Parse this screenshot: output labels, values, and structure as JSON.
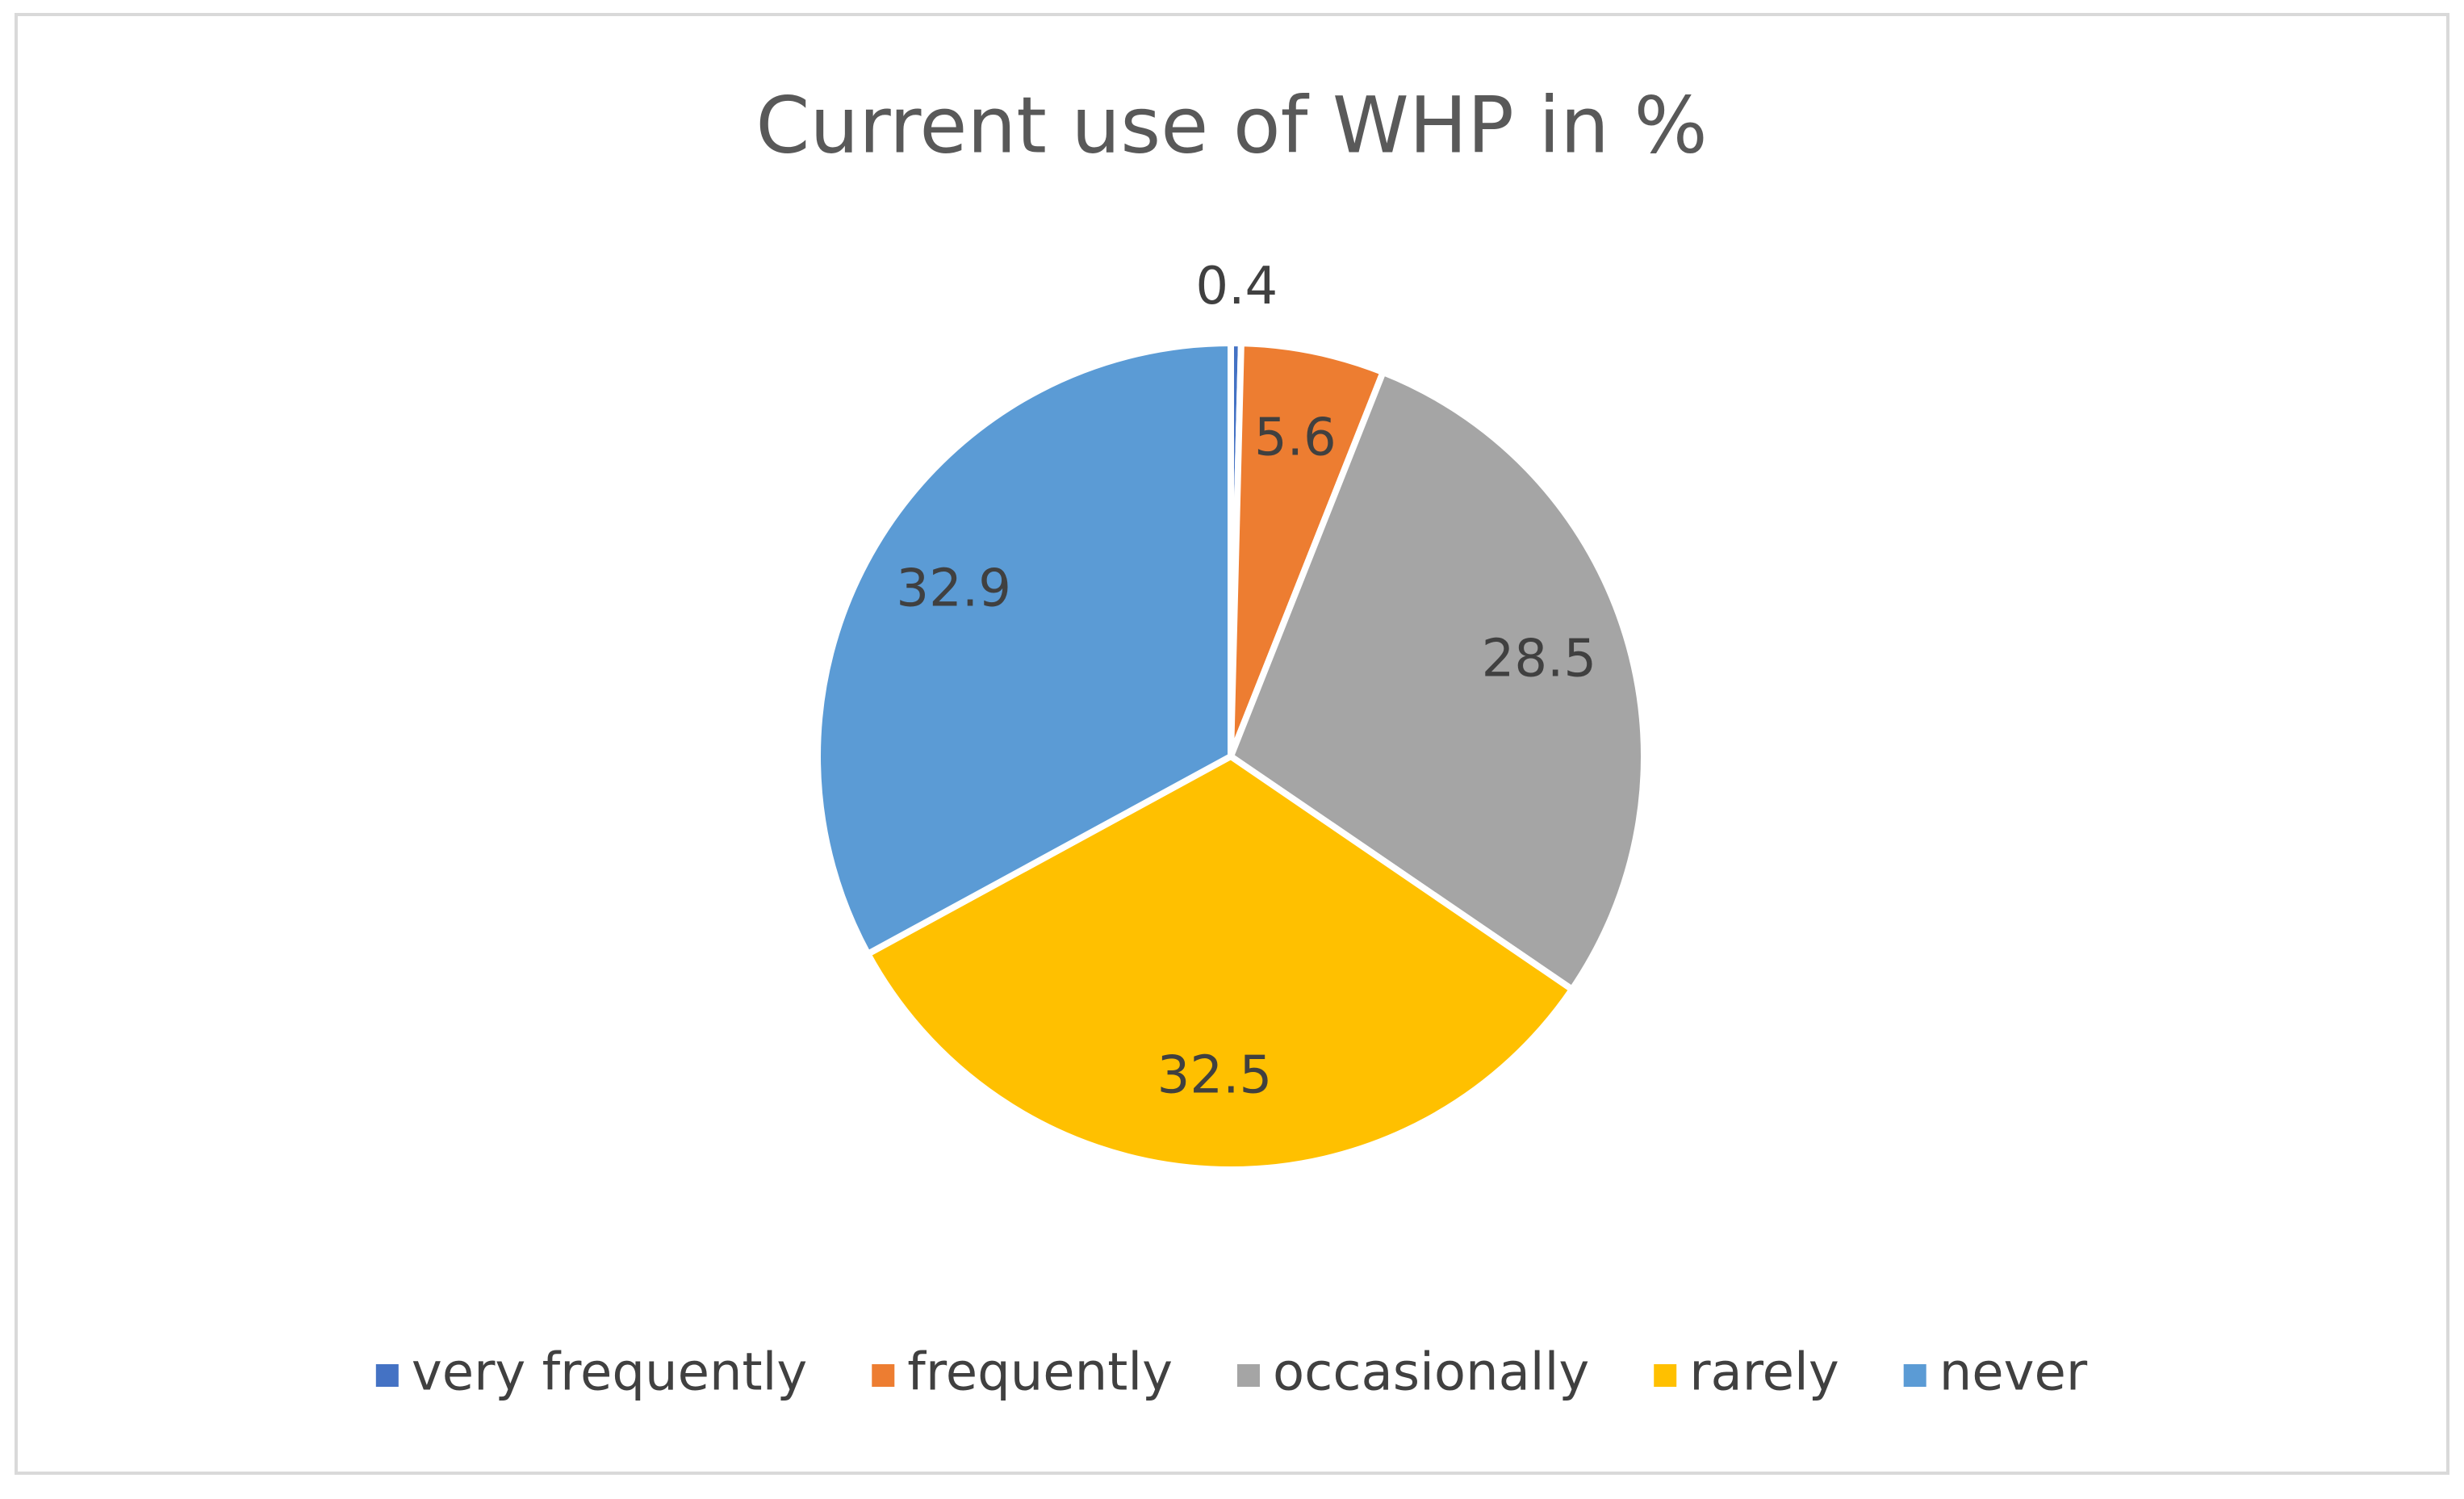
{
  "chart_data": {
    "type": "pie",
    "title": "Current use of WHP in %",
    "categories": [
      "very frequently",
      "frequently",
      "occasionally",
      "rarely",
      "never"
    ],
    "values": [
      0.4,
      5.6,
      28.5,
      32.5,
      32.9
    ],
    "colors": [
      "#4472c4",
      "#ed7d31",
      "#a5a5a5",
      "#ffc000",
      "#5b9bd5"
    ],
    "legend": "bottom"
  }
}
